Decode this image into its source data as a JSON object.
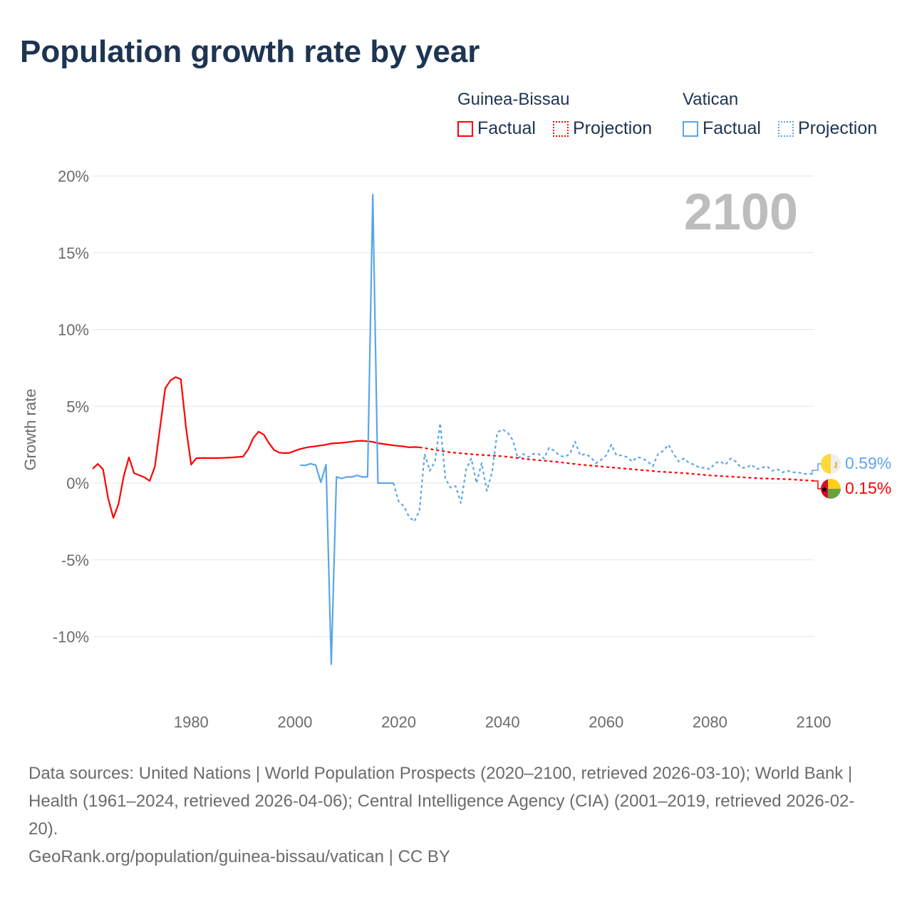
{
  "title": "Population growth rate by year",
  "legend": {
    "groups": [
      {
        "name": "Guinea-Bissau",
        "factual": "Factual",
        "projection": "Projection",
        "color": "#ff0000"
      },
      {
        "name": "Vatican",
        "factual": "Factual",
        "projection": "Projection",
        "color": "#5aa5ea"
      }
    ]
  },
  "year_label": "2100",
  "end_labels": {
    "vatican": "0.59%",
    "guinea_bissau": "0.15%"
  },
  "footer": {
    "sources": "Data sources: United Nations | World Population Prospects (2020–2100, retrieved 2026-03-10); World Bank | Health (1961–2024, retrieved 2026-04-06); Central Intelligence Agency (CIA) (2001–2019, retrieved 2026-02-20).",
    "credit": "GeoRank.org/population/guinea-bissau/vatican | CC BY"
  },
  "chart_data": {
    "type": "line",
    "title": "Population growth rate by year",
    "ylabel": "Growth rate",
    "xlabel": "",
    "xlim": [
      1961,
      2100
    ],
    "ylim": [
      -12.5,
      20
    ],
    "yticks": [
      -10,
      -5,
      0,
      5,
      10,
      15,
      20
    ],
    "ytick_labels": [
      "-10%",
      "-5%",
      "0%",
      "5%",
      "10%",
      "15%",
      "20%"
    ],
    "xticks": [
      1980,
      2000,
      2020,
      2040,
      2060,
      2080,
      2100
    ],
    "xtick_labels": [
      "1980",
      "2000",
      "2020",
      "2040",
      "2060",
      "2080",
      "2100"
    ],
    "grid": true,
    "series": [
      {
        "name": "Guinea-Bissau Factual",
        "color": "#ff0000",
        "dashed": false,
        "x_start": 1961,
        "values": [
          0.93,
          1.25,
          0.9,
          -1.0,
          -2.27,
          -1.35,
          0.46,
          1.67,
          0.65,
          0.51,
          0.37,
          0.14,
          1.07,
          3.6,
          6.17,
          6.68,
          6.9,
          6.77,
          3.6,
          1.2,
          1.62,
          1.63,
          1.63,
          1.63,
          1.63,
          1.64,
          1.65,
          1.67,
          1.7,
          1.72,
          2.2,
          2.95,
          3.35,
          3.15,
          2.6,
          2.15,
          1.98,
          1.95,
          1.97,
          2.1,
          2.22,
          2.3,
          2.36,
          2.4,
          2.45,
          2.5,
          2.58,
          2.6,
          2.62,
          2.66,
          2.7,
          2.74,
          2.75,
          2.72,
          2.68,
          2.6,
          2.55,
          2.5,
          2.45,
          2.42,
          2.38,
          2.33,
          2.35,
          2.33
        ]
      },
      {
        "name": "Guinea-Bissau Projection",
        "color": "#ff0000",
        "dashed": true,
        "x": [
          2024,
          2030,
          2035,
          2040,
          2045,
          2050,
          2055,
          2060,
          2065,
          2070,
          2075,
          2080,
          2085,
          2090,
          2095,
          2100
        ],
        "values": [
          2.33,
          2.0,
          1.85,
          1.75,
          1.55,
          1.4,
          1.2,
          1.05,
          0.9,
          0.75,
          0.65,
          0.5,
          0.4,
          0.3,
          0.25,
          0.15
        ]
      },
      {
        "name": "Vatican Factual",
        "color": "#5aa5ea",
        "dashed": false,
        "x_start": 2001,
        "values": [
          1.17,
          1.15,
          1.26,
          1.17,
          0.05,
          1.2,
          -11.8,
          0.4,
          0.3,
          0.4,
          0.4,
          0.5,
          0.4,
          0.4,
          18.8,
          0,
          0,
          0,
          0
        ]
      },
      {
        "name": "Vatican Projection",
        "color": "#5aa5ea",
        "dashed": true,
        "x_start": 2019,
        "values": [
          0,
          -1.2,
          -1.5,
          -2.2,
          -2.5,
          -1.8,
          1.9,
          0.8,
          1.4,
          3.9,
          0.3,
          -0.3,
          -0.2,
          -1.3,
          0.9,
          1.6,
          0.0,
          1.3,
          -0.5,
          0.7,
          3.3,
          3.5,
          3.3,
          2.8,
          1.6,
          1.9,
          1.7,
          1.9,
          1.9,
          1.6,
          2.3,
          2.1,
          1.8,
          1.7,
          1.9,
          2.7,
          1.8,
          1.9,
          1.7,
          1.3,
          1.5,
          1.8,
          2.5,
          1.8,
          1.8,
          1.7,
          1.4,
          1.7,
          1.6,
          1.4,
          1.1,
          1.9,
          2.1,
          2.5,
          1.9,
          1.4,
          1.6,
          1.3,
          1.2,
          1.0,
          1.0,
          0.9,
          1.3,
          1.4,
          1.2,
          1.6,
          1.4,
          1.0,
          1.0,
          1.2,
          0.9,
          1.0,
          1.1,
          0.8,
          0.9,
          0.7,
          0.8,
          0.7,
          0.7,
          0.6,
          0.6,
          0.59
        ]
      }
    ]
  }
}
